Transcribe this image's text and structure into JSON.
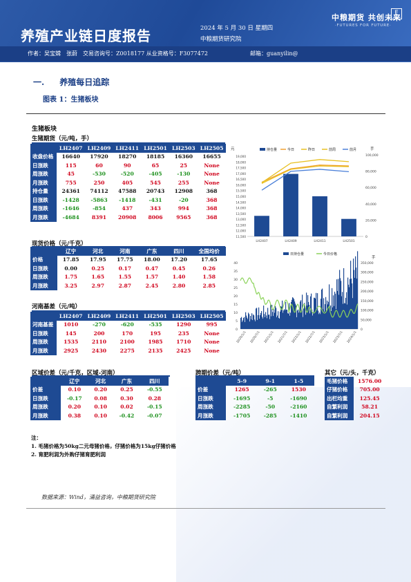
{
  "header": {
    "title": "养殖产业链日度报告",
    "date": "2024 年 5 月 30 日 星期四",
    "institute": "中粮期货研究院",
    "logo": "中粮期货 共创未来",
    "slogan": "·FUTURES FOR FUTURE·",
    "authors": "作者：吴宝嫦　张蔚　交易咨询号：Z0018177 从业资格号：F3077472",
    "email": "邮箱：guanyilin@"
  },
  "section": {
    "num": "一.",
    "title": "养殖每日追踪"
  },
  "figure": "图表 1：生猪板块",
  "block_title": "生猪板块",
  "futures": {
    "title": "生猪期货（元/吨，手）",
    "columns": [
      "",
      "LH2407",
      "LH2409",
      "LH2411",
      "LH2501",
      "LH2503",
      "LH2505"
    ],
    "rows": [
      {
        "label": "收盘价格",
        "values": [
          "16640",
          "17920",
          "18270",
          "18185",
          "16360",
          "16655"
        ],
        "colors": [
          "blk",
          "blk",
          "blk",
          "blk",
          "blk",
          "blk"
        ]
      },
      {
        "label": "日涨跌",
        "values": [
          "115",
          "60",
          "90",
          "65",
          "25",
          "None"
        ],
        "colors": [
          "red",
          "red",
          "red",
          "red",
          "red",
          "red"
        ]
      },
      {
        "label": "周涨跌",
        "values": [
          "45",
          "-530",
          "-520",
          "-405",
          "-130",
          "None"
        ],
        "colors": [
          "red",
          "grn",
          "grn",
          "grn",
          "grn",
          "red"
        ]
      },
      {
        "label": "月涨跌",
        "values": [
          "755",
          "250",
          "405",
          "545",
          "255",
          "None"
        ],
        "colors": [
          "red",
          "red",
          "red",
          "red",
          "red",
          "red"
        ]
      },
      {
        "label": "持仓量",
        "values": [
          "24361",
          "74112",
          "47588",
          "20743",
          "12908",
          "368"
        ],
        "colors": [
          "blk",
          "blk",
          "blk",
          "blk",
          "blk",
          "blk"
        ]
      },
      {
        "label": "日涨跌",
        "values": [
          "-1428",
          "-5863",
          "-1418",
          "-431",
          "-20",
          "368"
        ],
        "colors": [
          "grn",
          "grn",
          "grn",
          "grn",
          "grn",
          "red"
        ]
      },
      {
        "label": "周涨跌",
        "values": [
          "-1646",
          "-854",
          "437",
          "343",
          "994",
          "368"
        ],
        "colors": [
          "grn",
          "grn",
          "red",
          "red",
          "red",
          "red"
        ]
      },
      {
        "label": "月涨跌",
        "values": [
          "-4684",
          "8391",
          "20908",
          "8006",
          "9565",
          "368"
        ],
        "colors": [
          "grn",
          "red",
          "red",
          "red",
          "red",
          "red"
        ]
      }
    ]
  },
  "spot": {
    "title": "现货价格（元/千克）",
    "columns": [
      "",
      "辽宁",
      "河北",
      "河南",
      "广东",
      "四川",
      "全国均价"
    ],
    "rows": [
      {
        "label": "价格",
        "values": [
          "17.85",
          "17.95",
          "17.75",
          "18.00",
          "17.20",
          "17.65"
        ],
        "colors": [
          "blk",
          "blk",
          "blk",
          "blk",
          "blk",
          "blk"
        ]
      },
      {
        "label": "日涨跌",
        "values": [
          "0.00",
          "0.25",
          "0.17",
          "0.47",
          "0.45",
          "0.26"
        ],
        "colors": [
          "blk",
          "red",
          "red",
          "red",
          "red",
          "red"
        ]
      },
      {
        "label": "周涨跌",
        "values": [
          "1.75",
          "1.65",
          "1.55",
          "1.57",
          "1.40",
          "1.58"
        ],
        "colors": [
          "red",
          "red",
          "red",
          "red",
          "red",
          "red"
        ]
      },
      {
        "label": "月涨跌",
        "values": [
          "3.25",
          "2.97",
          "2.87",
          "2.45",
          "2.80",
          "2.85"
        ],
        "colors": [
          "red",
          "red",
          "red",
          "red",
          "red",
          "red"
        ]
      }
    ]
  },
  "basis": {
    "title": "河南基差（元/吨）",
    "columns": [
      "",
      "LH2407",
      "LH2409",
      "LH2411",
      "LH2501",
      "LH2503",
      "LH2505"
    ],
    "rows": [
      {
        "label": "河南基差",
        "values": [
          "1010",
          "-270",
          "-620",
          "-535",
          "1290",
          "995"
        ],
        "colors": [
          "red",
          "grn",
          "grn",
          "grn",
          "red",
          "red"
        ]
      },
      {
        "label": "日涨跌",
        "values": [
          "145",
          "200",
          "170",
          "195",
          "235",
          "None"
        ],
        "colors": [
          "red",
          "red",
          "red",
          "red",
          "red",
          "red"
        ]
      },
      {
        "label": "周涨跌",
        "values": [
          "1535",
          "2110",
          "2100",
          "1985",
          "1710",
          "None"
        ],
        "colors": [
          "red",
          "red",
          "red",
          "red",
          "red",
          "red"
        ]
      },
      {
        "label": "月涨跌",
        "values": [
          "2925",
          "2430",
          "2275",
          "2135",
          "2425",
          "None"
        ],
        "colors": [
          "red",
          "red",
          "red",
          "red",
          "red",
          "red"
        ]
      }
    ]
  },
  "regional": {
    "title": "区域价差（元/千克，区域-河南）",
    "columns": [
      "",
      "辽宁",
      "河北",
      "广东",
      "四川"
    ],
    "rows": [
      {
        "label": "价差",
        "values": [
          "0.10",
          "0.20",
          "0.25",
          "-0.55"
        ],
        "colors": [
          "red",
          "red",
          "red",
          "grn"
        ]
      },
      {
        "label": "日涨跌",
        "values": [
          "-0.17",
          "0.08",
          "0.30",
          "0.28"
        ],
        "colors": [
          "grn",
          "red",
          "red",
          "red"
        ]
      },
      {
        "label": "周涨跌",
        "values": [
          "0.20",
          "0.10",
          "0.02",
          "-0.15"
        ],
        "colors": [
          "red",
          "red",
          "red",
          "grn"
        ]
      },
      {
        "label": "月涨跌",
        "values": [
          "0.38",
          "0.10",
          "-0.42",
          "-0.07"
        ],
        "colors": [
          "red",
          "red",
          "grn",
          "grn"
        ]
      }
    ]
  },
  "spread": {
    "title": "跨期价差（元/吨）",
    "columns": [
      "",
      "5-9",
      "9-1",
      "1-5"
    ],
    "rows": [
      {
        "label": "价差",
        "values": [
          "1265",
          "-265",
          "1530"
        ],
        "colors": [
          "red",
          "grn",
          "red"
        ]
      },
      {
        "label": "日涨跌",
        "values": [
          "-1695",
          "-5",
          "-1690"
        ],
        "colors": [
          "grn",
          "grn",
          "grn"
        ]
      },
      {
        "label": "周涨跌",
        "values": [
          "-2285",
          "-50",
          "-2160"
        ],
        "colors": [
          "grn",
          "grn",
          "grn"
        ]
      },
      {
        "label": "月涨跌",
        "values": [
          "-1705",
          "-285",
          "-1410"
        ],
        "colors": [
          "grn",
          "grn",
          "grn"
        ]
      }
    ]
  },
  "other": {
    "title": "其它（元/头，千克）",
    "rows": [
      {
        "label": "毛猪价格",
        "value": "1576.00"
      },
      {
        "label": "仔猪价格",
        "value": "705.00"
      },
      {
        "label": "出栏均重",
        "value": "125.45"
      },
      {
        "label": "自繁利润",
        "value": "58.21"
      },
      {
        "label": "自繁利润",
        "value": "204.15"
      }
    ]
  },
  "notes": [
    "注：",
    "1. 毛猪价格为50kg二元母猪价格，仔猪价格为15kg仔猪价格",
    "2. 育肥利润为外购仔猪育肥利润"
  ],
  "source": "数据来源：Wind，涌益咨询，中粮期货研究院",
  "colors": {
    "navy": "#1e4a93",
    "red": "#d0021b",
    "green": "#1a8f1a",
    "orange": "#f0a030",
    "gold": "#e8c020",
    "purple": "#9b7fd0",
    "blue": "#4a7fd8"
  },
  "chart_data": [
    {
      "type": "bar",
      "title": "",
      "categories": [
        "LH2407",
        "LH2409",
        "LH2411",
        "LH2501"
      ],
      "legend": [
        "持仓量",
        "今日",
        "昨日",
        "前周",
        "前月"
      ],
      "y_left_ticks": [
        "19,000",
        "18,000",
        "17,500",
        "17,000",
        "16,500",
        "16,000",
        "15,500",
        "15,000",
        "14,500",
        "14,000",
        "13,500",
        "13,000",
        "12,500",
        "12,000",
        "11,500"
      ],
      "y_right_ticks": [
        "100,000",
        "80,000",
        "60,000",
        "40,000",
        "20,000",
        "0"
      ],
      "y_left_unit": "元",
      "y_right_unit": "手",
      "series": [
        {
          "name": "持仓量",
          "axis": "right",
          "values": [
            24361,
            74112,
            47588,
            20743
          ]
        },
        {
          "name": "今日",
          "values": [
            16640,
            17920,
            18270,
            18185
          ]
        },
        {
          "name": "昨日",
          "values": [
            16525,
            17860,
            18180,
            18120
          ]
        },
        {
          "name": "前周",
          "values": [
            16595,
            18450,
            18790,
            18590
          ]
        },
        {
          "name": "前月",
          "values": [
            15885,
            17670,
            17865,
            17640
          ]
        }
      ],
      "ylim_left": [
        11500,
        19500
      ],
      "ylim_right": [
        0,
        100000
      ]
    },
    {
      "type": "line",
      "title": "",
      "legend": [
        "日持仓量",
        "今日价格"
      ],
      "x_ticks": [
        "2020/1/1",
        "2020/7/1",
        "2021/1/1",
        "2021/7/1",
        "2022/1/1",
        "2022/7/1",
        "2023/1/1",
        "2023/7/1",
        "2024/1/1"
      ],
      "y_left_ticks": [
        "40",
        "35",
        "30",
        "25",
        "20",
        "15",
        "10",
        "5",
        "0"
      ],
      "y_right_ticks": [
        "350,000",
        "300,000",
        "250,000",
        "200,000",
        "150,000",
        "100,000",
        "50,000",
        "0"
      ],
      "y_right_unit": "手",
      "ylim_left": [
        0,
        40
      ],
      "ylim_right": [
        0,
        350000
      ]
    }
  ]
}
